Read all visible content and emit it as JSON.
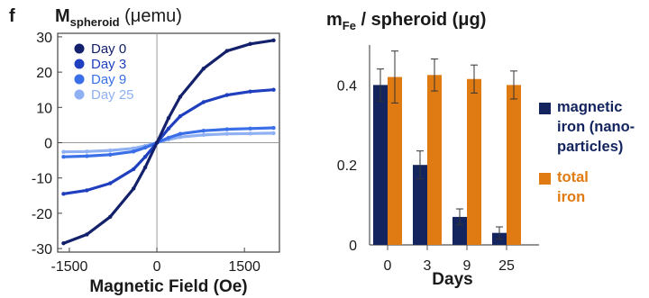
{
  "panel_letter": "f",
  "chart_data": [
    {
      "type": "line",
      "title_main": "M",
      "title_sub": "spheroid",
      "title_unit": " (μemu)",
      "xlabel": "Magnetic Field (Oe)",
      "ylabel": "",
      "xlim": [
        -1700,
        2100
      ],
      "ylim": [
        -31,
        31
      ],
      "x_ticks": [
        -1500,
        0,
        1500
      ],
      "x_tick_labels": [
        "-1500",
        "0",
        "1500"
      ],
      "y_ticks": [
        30,
        20,
        10,
        0,
        -10,
        -20,
        -30
      ],
      "y_tick_labels": [
        "30",
        "20",
        "10",
        "0",
        "-10",
        "-20",
        "-30"
      ],
      "grid": false,
      "legend_position": "top-left",
      "series": [
        {
          "name": "Day 0",
          "color": "#13206b",
          "x": [
            -1600,
            -1200,
            -800,
            -400,
            -200,
            0,
            200,
            400,
            800,
            1200,
            1600,
            2000
          ],
          "y": [
            -28.5,
            -26,
            -21,
            -13,
            -7,
            0,
            7,
            13,
            21,
            26,
            28,
            29
          ]
        },
        {
          "name": "Day 3",
          "color": "#1f3fbf",
          "x": [
            -1600,
            -1200,
            -800,
            -400,
            -200,
            0,
            200,
            400,
            800,
            1200,
            1600,
            2000
          ],
          "y": [
            -14.5,
            -13.5,
            -11.5,
            -7.5,
            -4,
            0,
            4,
            7.5,
            11.5,
            13.5,
            14.5,
            15
          ]
        },
        {
          "name": "Day 9",
          "color": "#3a6fe8",
          "x": [
            -1600,
            -1200,
            -800,
            -400,
            -200,
            0,
            200,
            400,
            800,
            1200,
            1600,
            2000
          ],
          "y": [
            -4,
            -3.8,
            -3.4,
            -2.5,
            -1.4,
            0,
            1.4,
            2.5,
            3.4,
            3.8,
            4,
            4.2
          ]
        },
        {
          "name": "Day 25",
          "color": "#8fb0f2",
          "x": [
            -1600,
            -1200,
            -800,
            -400,
            -200,
            0,
            200,
            400,
            800,
            1200,
            1600,
            2000
          ],
          "y": [
            -2.6,
            -2.5,
            -2.2,
            -1.6,
            -0.9,
            0,
            0.9,
            1.6,
            2.2,
            2.5,
            2.6,
            2.7
          ]
        }
      ]
    },
    {
      "type": "bar",
      "title_main": "m",
      "title_sub": "Fe",
      "title_rest": " / spheroid (μg)",
      "xlabel": "Days",
      "ylabel": "",
      "categories": [
        "0",
        "3",
        "9",
        "25"
      ],
      "ylim": [
        0,
        0.5
      ],
      "y_ticks": [
        0,
        0.2,
        0.4
      ],
      "y_tick_labels": [
        "0",
        "0.2",
        "0.4"
      ],
      "grid": false,
      "legend_position": "right",
      "series": [
        {
          "name": "magnetic iron (nano-particles)",
          "legend_lines": [
            "magnetic",
            "iron (nano-",
            "particles)"
          ],
          "color": "#13245e",
          "values": [
            0.4,
            0.2,
            0.07,
            0.03
          ],
          "errors": [
            0.04,
            0.035,
            0.02,
            0.015
          ]
        },
        {
          "name": "total iron",
          "legend_lines": [
            "total",
            "iron"
          ],
          "color": "#e07a12",
          "values": [
            0.42,
            0.425,
            0.415,
            0.4
          ],
          "errors": [
            0.065,
            0.04,
            0.035,
            0.035
          ]
        }
      ]
    }
  ]
}
